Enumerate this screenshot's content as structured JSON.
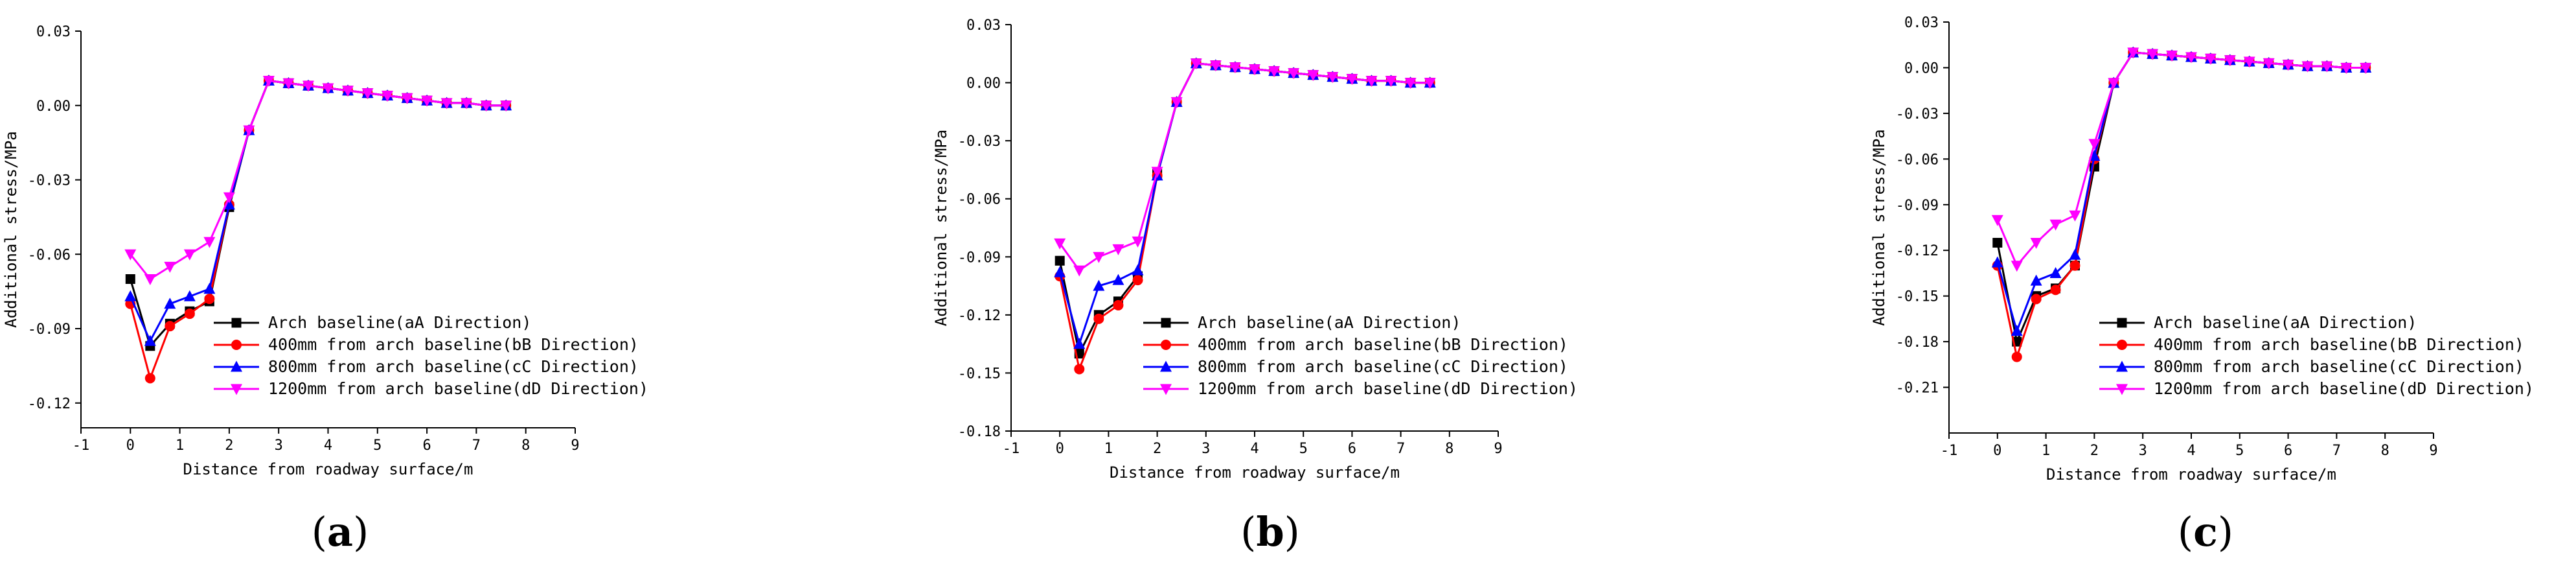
{
  "figure": {
    "colors": {
      "aA": "#000000",
      "bB": "#ff0000",
      "cC": "#0000ff",
      "dD": "#ff00ff",
      "axis": "#000000"
    }
  },
  "chart_data": [
    {
      "type": "line",
      "panel_label": "(a)",
      "panel_letter": "a",
      "xlabel": "Distance from roadway surface/m",
      "ylabel": "Additional stress/MPa",
      "xlim": [
        -1,
        9
      ],
      "ylim": [
        -0.13,
        0.03
      ],
      "xticks": [
        -1,
        0,
        1,
        2,
        3,
        4,
        5,
        6,
        7,
        8,
        9
      ],
      "yticks": [
        0.03,
        0.0,
        -0.03,
        -0.06,
        -0.09,
        -0.12
      ],
      "ytick_labels": [
        "0.03",
        "0.00",
        "-0.03",
        "-0.06",
        "-0.09",
        "-0.12"
      ],
      "x": [
        0,
        0.4,
        0.8,
        1.2,
        1.6,
        2.0,
        2.4,
        2.8,
        3.2,
        3.6,
        4.0,
        4.4,
        4.8,
        5.2,
        5.6,
        6.0,
        6.4,
        6.8,
        7.2,
        7.6
      ],
      "series": [
        {
          "name": "Arch baseline(aA Direction)",
          "key": "aA",
          "marker": "square",
          "values": [
            -0.07,
            -0.097,
            -0.088,
            -0.083,
            -0.079,
            -0.041,
            -0.01,
            0.01,
            0.009,
            0.008,
            0.007,
            0.006,
            0.005,
            0.004,
            0.003,
            0.002,
            0.001,
            0.001,
            0.0,
            0.0
          ]
        },
        {
          "name": "400mm from arch baseline(bB Direction)",
          "key": "bB",
          "marker": "circle",
          "values": [
            -0.08,
            -0.11,
            -0.089,
            -0.084,
            -0.078,
            -0.04,
            -0.01,
            0.01,
            0.009,
            0.008,
            0.007,
            0.006,
            0.005,
            0.004,
            0.003,
            0.002,
            0.001,
            0.001,
            0.0,
            0.0
          ]
        },
        {
          "name": "800mm from arch baseline(cC Direction)",
          "key": "cC",
          "marker": "triangle-up",
          "values": [
            -0.077,
            -0.095,
            -0.08,
            -0.077,
            -0.074,
            -0.04,
            -0.01,
            0.01,
            0.009,
            0.008,
            0.007,
            0.006,
            0.005,
            0.004,
            0.003,
            0.002,
            0.001,
            0.001,
            0.0,
            0.0
          ]
        },
        {
          "name": "1200mm from arch baseline(dD Direction)",
          "key": "dD",
          "marker": "triangle-down",
          "values": [
            -0.06,
            -0.07,
            -0.065,
            -0.06,
            -0.055,
            -0.037,
            -0.01,
            0.01,
            0.009,
            0.008,
            0.007,
            0.006,
            0.005,
            0.004,
            0.003,
            0.002,
            0.001,
            0.001,
            0.0,
            0.0
          ]
        }
      ]
    },
    {
      "type": "line",
      "panel_label": "(b)",
      "panel_letter": "b",
      "xlabel": "Distance from roadway surface/m",
      "ylabel": "Additional stress/MPa",
      "xlim": [
        -1,
        9
      ],
      "ylim": [
        -0.18,
        0.03
      ],
      "xticks": [
        -1,
        0,
        1,
        2,
        3,
        4,
        5,
        6,
        7,
        8,
        9
      ],
      "yticks": [
        0.03,
        0.0,
        -0.03,
        -0.06,
        -0.09,
        -0.12,
        -0.15,
        -0.18
      ],
      "ytick_labels": [
        "0.03",
        "0.00",
        "-0.03",
        "-0.06",
        "-0.09",
        "-0.12",
        "-0.15",
        "-0.18"
      ],
      "x": [
        0,
        0.4,
        0.8,
        1.2,
        1.6,
        2.0,
        2.4,
        2.8,
        3.2,
        3.6,
        4.0,
        4.4,
        4.8,
        5.2,
        5.6,
        6.0,
        6.4,
        6.8,
        7.2,
        7.6
      ],
      "series": [
        {
          "name": "Arch baseline(aA Direction)",
          "key": "aA",
          "marker": "square",
          "values": [
            -0.092,
            -0.14,
            -0.12,
            -0.113,
            -0.1,
            -0.047,
            -0.01,
            0.01,
            0.009,
            0.008,
            0.007,
            0.006,
            0.005,
            0.004,
            0.003,
            0.002,
            0.001,
            0.001,
            0.0,
            0.0
          ]
        },
        {
          "name": "400mm from arch baseline(bB Direction)",
          "key": "bB",
          "marker": "circle",
          "values": [
            -0.1,
            -0.148,
            -0.122,
            -0.115,
            -0.102,
            -0.048,
            -0.01,
            0.01,
            0.009,
            0.008,
            0.007,
            0.006,
            0.005,
            0.004,
            0.003,
            0.002,
            0.001,
            0.001,
            0.0,
            0.0
          ]
        },
        {
          "name": "800mm from arch baseline(cC Direction)",
          "key": "cC",
          "marker": "triangle-up",
          "values": [
            -0.098,
            -0.135,
            -0.105,
            -0.102,
            -0.097,
            -0.048,
            -0.01,
            0.01,
            0.009,
            0.008,
            0.007,
            0.006,
            0.005,
            0.004,
            0.003,
            0.002,
            0.001,
            0.001,
            0.0,
            0.0
          ]
        },
        {
          "name": "1200mm from arch baseline(dD Direction)",
          "key": "dD",
          "marker": "triangle-down",
          "values": [
            -0.083,
            -0.097,
            -0.09,
            -0.086,
            -0.082,
            -0.046,
            -0.01,
            0.01,
            0.009,
            0.008,
            0.007,
            0.006,
            0.005,
            0.004,
            0.003,
            0.002,
            0.001,
            0.001,
            0.0,
            0.0
          ]
        }
      ]
    },
    {
      "type": "line",
      "panel_label": "(c)",
      "panel_letter": "c",
      "xlabel": "Distance from roadway surface/m",
      "ylabel": "Additional stress/MPa",
      "xlim": [
        -1,
        9
      ],
      "ylim": [
        -0.24,
        0.03
      ],
      "xticks": [
        -1,
        0,
        1,
        2,
        3,
        4,
        5,
        6,
        7,
        8,
        9
      ],
      "yticks": [
        0.03,
        0.0,
        -0.03,
        -0.06,
        -0.09,
        -0.12,
        -0.15,
        -0.18,
        -0.21
      ],
      "ytick_labels": [
        "0.03",
        "0.00",
        "-0.03",
        "-0.06",
        "-0.09",
        "-0.12",
        "-0.15",
        "-0.18",
        "-0.21"
      ],
      "x": [
        0,
        0.4,
        0.8,
        1.2,
        1.6,
        2.0,
        2.4,
        2.8,
        3.2,
        3.6,
        4.0,
        4.4,
        4.8,
        5.2,
        5.6,
        6.0,
        6.4,
        6.8,
        7.2,
        7.6
      ],
      "series": [
        {
          "name": "Arch baseline(aA Direction)",
          "key": "aA",
          "marker": "square",
          "values": [
            -0.115,
            -0.18,
            -0.15,
            -0.145,
            -0.13,
            -0.065,
            -0.01,
            0.01,
            0.009,
            0.008,
            0.007,
            0.006,
            0.005,
            0.004,
            0.003,
            0.002,
            0.001,
            0.001,
            0.0,
            0.0
          ]
        },
        {
          "name": "400mm from arch baseline(bB Direction)",
          "key": "bB",
          "marker": "circle",
          "values": [
            -0.13,
            -0.19,
            -0.152,
            -0.146,
            -0.13,
            -0.06,
            -0.01,
            0.01,
            0.009,
            0.008,
            0.007,
            0.006,
            0.005,
            0.004,
            0.003,
            0.002,
            0.001,
            0.001,
            0.0,
            0.0
          ]
        },
        {
          "name": "800mm from arch baseline(cC Direction)",
          "key": "cC",
          "marker": "triangle-up",
          "values": [
            -0.128,
            -0.173,
            -0.14,
            -0.135,
            -0.123,
            -0.058,
            -0.01,
            0.01,
            0.009,
            0.008,
            0.007,
            0.006,
            0.005,
            0.004,
            0.003,
            0.002,
            0.001,
            0.001,
            0.0,
            0.0
          ]
        },
        {
          "name": "1200mm from arch baseline(dD Direction)",
          "key": "dD",
          "marker": "triangle-down",
          "values": [
            -0.1,
            -0.13,
            -0.115,
            -0.103,
            -0.097,
            -0.05,
            -0.01,
            0.01,
            0.009,
            0.008,
            0.007,
            0.006,
            0.005,
            0.004,
            0.003,
            0.002,
            0.001,
            0.001,
            0.0,
            0.0
          ]
        }
      ]
    }
  ]
}
